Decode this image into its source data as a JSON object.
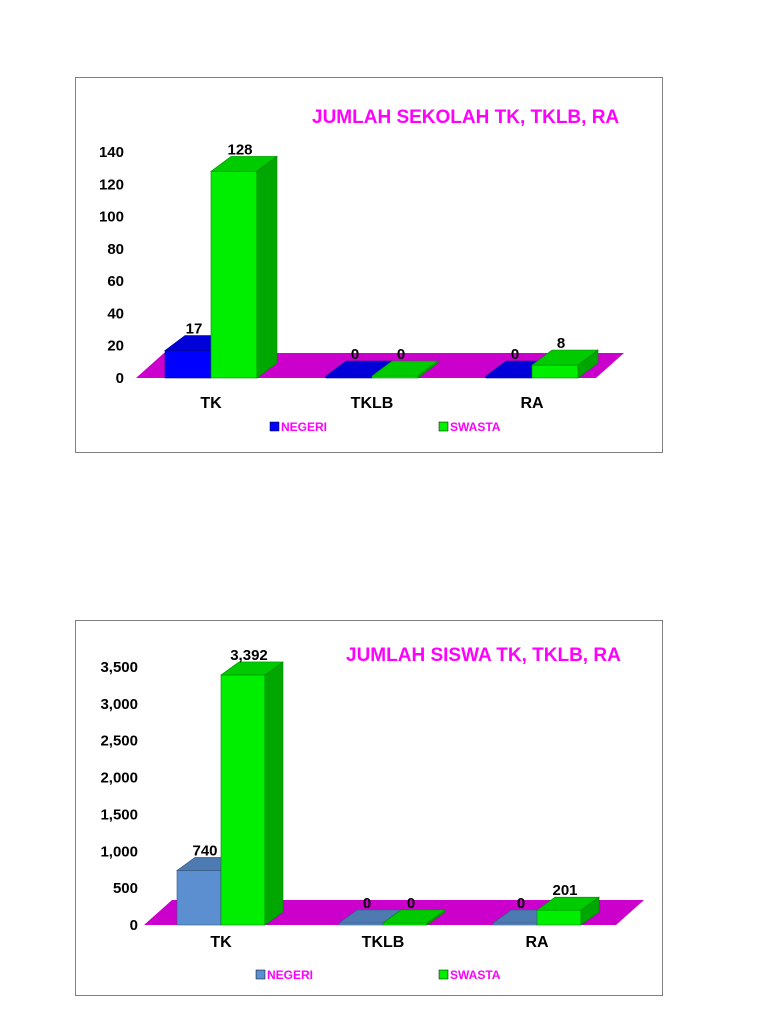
{
  "colors": {
    "floor": "#cc00cc",
    "title": "#ff00ff",
    "legend_text": "#ff00ff"
  },
  "chart_data": [
    {
      "type": "bar",
      "title": "JUMLAH SEKOLAH TK, TKLB, RA",
      "categories": [
        "TK",
        "TKLB",
        "RA"
      ],
      "series": [
        {
          "name": "NEGERI",
          "values": [
            17,
            0,
            0
          ],
          "color": "#0000ff"
        },
        {
          "name": "SWASTA",
          "values": [
            128,
            0,
            8
          ],
          "color": "#00ee00"
        }
      ],
      "value_labels": [
        [
          "17",
          "0",
          "0"
        ],
        [
          "128",
          "0",
          "8"
        ]
      ],
      "yticks": [
        "0",
        "20",
        "40",
        "60",
        "80",
        "100",
        "120",
        "140"
      ],
      "ylim": [
        0,
        140
      ],
      "legend": "bottom",
      "grid": false
    },
    {
      "type": "bar",
      "title": "JUMLAH SISWA TK, TKLB, RA",
      "categories": [
        "TK",
        "TKLB",
        "RA"
      ],
      "series": [
        {
          "name": "NEGERI",
          "values": [
            740,
            0,
            0
          ],
          "color": "#5b8fd0"
        },
        {
          "name": "SWASTA",
          "values": [
            3392,
            0,
            201
          ],
          "color": "#00ee00"
        }
      ],
      "value_labels": [
        [
          "740",
          "0",
          "0"
        ],
        [
          "3,392",
          "0",
          "201"
        ]
      ],
      "yticks": [
        "0",
        "500",
        "1,000",
        "1,500",
        "2,000",
        "2,500",
        "3,000",
        "3,500"
      ],
      "ylim": [
        0,
        3500
      ],
      "legend": "bottom",
      "grid": false
    }
  ]
}
